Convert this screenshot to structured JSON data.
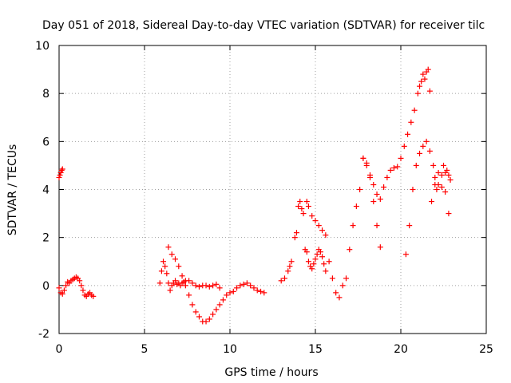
{
  "chart_data": {
    "type": "scatter",
    "title": "Day 051 of 2018, Sidereal Day-to-day VTEC variation (SDTVAR) for receiver tilc",
    "xlabel": "GPS time / hours",
    "ylabel": "SDTVAR / TECUs",
    "xlim": [
      0,
      25
    ],
    "ylim": [
      -2,
      10
    ],
    "xticks": [
      "0",
      "5",
      "10",
      "15",
      "20",
      "25"
    ],
    "yticks": [
      "-2",
      "0",
      "2",
      "4",
      "6",
      "8",
      "10"
    ],
    "grid": true,
    "marker": "+",
    "series_color": "#ff0000",
    "series": [
      {
        "name": "SDTVAR",
        "x": [
          0.0,
          0.05,
          0.1,
          0.15,
          0.2,
          0.0,
          0.1,
          0.2,
          0.3,
          0.4,
          0.5,
          0.6,
          0.7,
          0.8,
          0.9,
          1.0,
          1.1,
          1.2,
          1.3,
          1.4,
          1.5,
          1.6,
          1.7,
          1.8,
          1.9,
          2.0,
          5.9,
          6.0,
          6.1,
          6.2,
          6.3,
          6.4,
          6.5,
          6.6,
          6.7,
          6.8,
          6.9,
          7.0,
          7.1,
          7.2,
          7.3,
          7.4,
          7.6,
          7.8,
          8.0,
          8.2,
          8.4,
          8.6,
          8.8,
          9.0,
          9.2,
          9.4,
          6.4,
          6.6,
          6.8,
          7.0,
          7.2,
          7.4,
          7.6,
          7.8,
          8.0,
          8.2,
          8.4,
          8.6,
          8.8,
          9.0,
          9.2,
          9.4,
          9.6,
          9.8,
          10.0,
          10.2,
          10.4,
          10.6,
          10.8,
          11.0,
          11.2,
          11.4,
          11.6,
          11.8,
          12.0,
          13.0,
          13.2,
          13.4,
          13.5,
          13.6,
          13.8,
          13.9,
          14.0,
          14.1,
          14.2,
          14.3,
          14.4,
          14.5,
          14.6,
          14.7,
          14.8,
          14.9,
          15.0,
          15.1,
          15.2,
          15.3,
          15.4,
          15.5,
          15.6,
          14.5,
          14.6,
          14.8,
          15.0,
          15.2,
          15.4,
          15.6,
          15.8,
          16.0,
          16.2,
          16.4,
          16.6,
          16.8,
          17.0,
          17.2,
          17.4,
          17.6,
          17.8,
          18.0,
          18.2,
          18.4,
          18.6,
          18.8,
          17.8,
          18.0,
          18.2,
          18.4,
          18.6,
          18.8,
          19.0,
          19.2,
          19.4,
          19.6,
          19.8,
          20.0,
          20.2,
          20.4,
          20.6,
          20.8,
          21.0,
          21.1,
          21.2,
          21.3,
          21.4,
          21.5,
          21.6,
          21.7,
          20.3,
          20.5,
          20.7,
          20.9,
          21.1,
          21.3,
          21.5,
          21.7,
          21.9,
          22.0,
          22.1,
          22.2,
          22.4,
          22.5,
          22.6,
          22.7,
          22.8,
          22.9,
          21.8,
          22.0,
          22.2,
          22.4,
          22.6,
          22.8
        ],
        "y": [
          4.5,
          4.6,
          4.7,
          4.8,
          4.85,
          -0.1,
          -0.3,
          -0.35,
          -0.2,
          0.0,
          0.15,
          0.1,
          0.2,
          0.25,
          0.3,
          0.35,
          0.3,
          0.2,
          0.0,
          -0.2,
          -0.4,
          -0.45,
          -0.35,
          -0.3,
          -0.4,
          -0.45,
          0.1,
          0.6,
          1.0,
          0.8,
          0.5,
          0.1,
          -0.2,
          0.0,
          0.1,
          0.2,
          0.05,
          0.1,
          0.0,
          0.1,
          0.15,
          0.2,
          0.2,
          0.1,
          0.0,
          -0.05,
          0.0,
          0.0,
          -0.05,
          0.0,
          0.05,
          -0.1,
          1.6,
          1.3,
          1.1,
          0.8,
          0.4,
          0.0,
          -0.4,
          -0.8,
          -1.1,
          -1.3,
          -1.5,
          -1.5,
          -1.4,
          -1.2,
          -1.0,
          -0.8,
          -0.6,
          -0.4,
          -0.3,
          -0.25,
          -0.1,
          0.0,
          0.05,
          0.1,
          0.0,
          -0.1,
          -0.2,
          -0.25,
          -0.3,
          0.2,
          0.3,
          0.6,
          0.8,
          1.0,
          2.0,
          2.2,
          3.3,
          3.5,
          3.2,
          3.0,
          1.5,
          1.4,
          1.0,
          0.8,
          0.7,
          0.9,
          1.1,
          1.3,
          1.5,
          1.4,
          1.2,
          0.9,
          0.6,
          3.5,
          3.3,
          2.9,
          2.7,
          2.5,
          2.3,
          2.1,
          1.0,
          0.3,
          -0.3,
          -0.5,
          0.0,
          0.3,
          1.5,
          2.5,
          3.3,
          4.0,
          5.3,
          5.1,
          4.5,
          3.5,
          2.5,
          1.6,
          5.3,
          5.0,
          4.6,
          4.2,
          3.8,
          3.6,
          4.1,
          4.5,
          4.8,
          4.9,
          4.95,
          5.3,
          5.8,
          6.3,
          6.8,
          7.3,
          8.0,
          8.3,
          8.5,
          8.8,
          8.6,
          8.9,
          9.0,
          8.1,
          1.3,
          2.5,
          4.0,
          5.0,
          5.5,
          5.8,
          6.0,
          5.6,
          5.0,
          4.2,
          4.0,
          4.2,
          4.1,
          5.0,
          4.7,
          4.8,
          4.6,
          4.4,
          3.5,
          4.5,
          4.7,
          4.6,
          3.9,
          3.0
        ]
      }
    ]
  }
}
